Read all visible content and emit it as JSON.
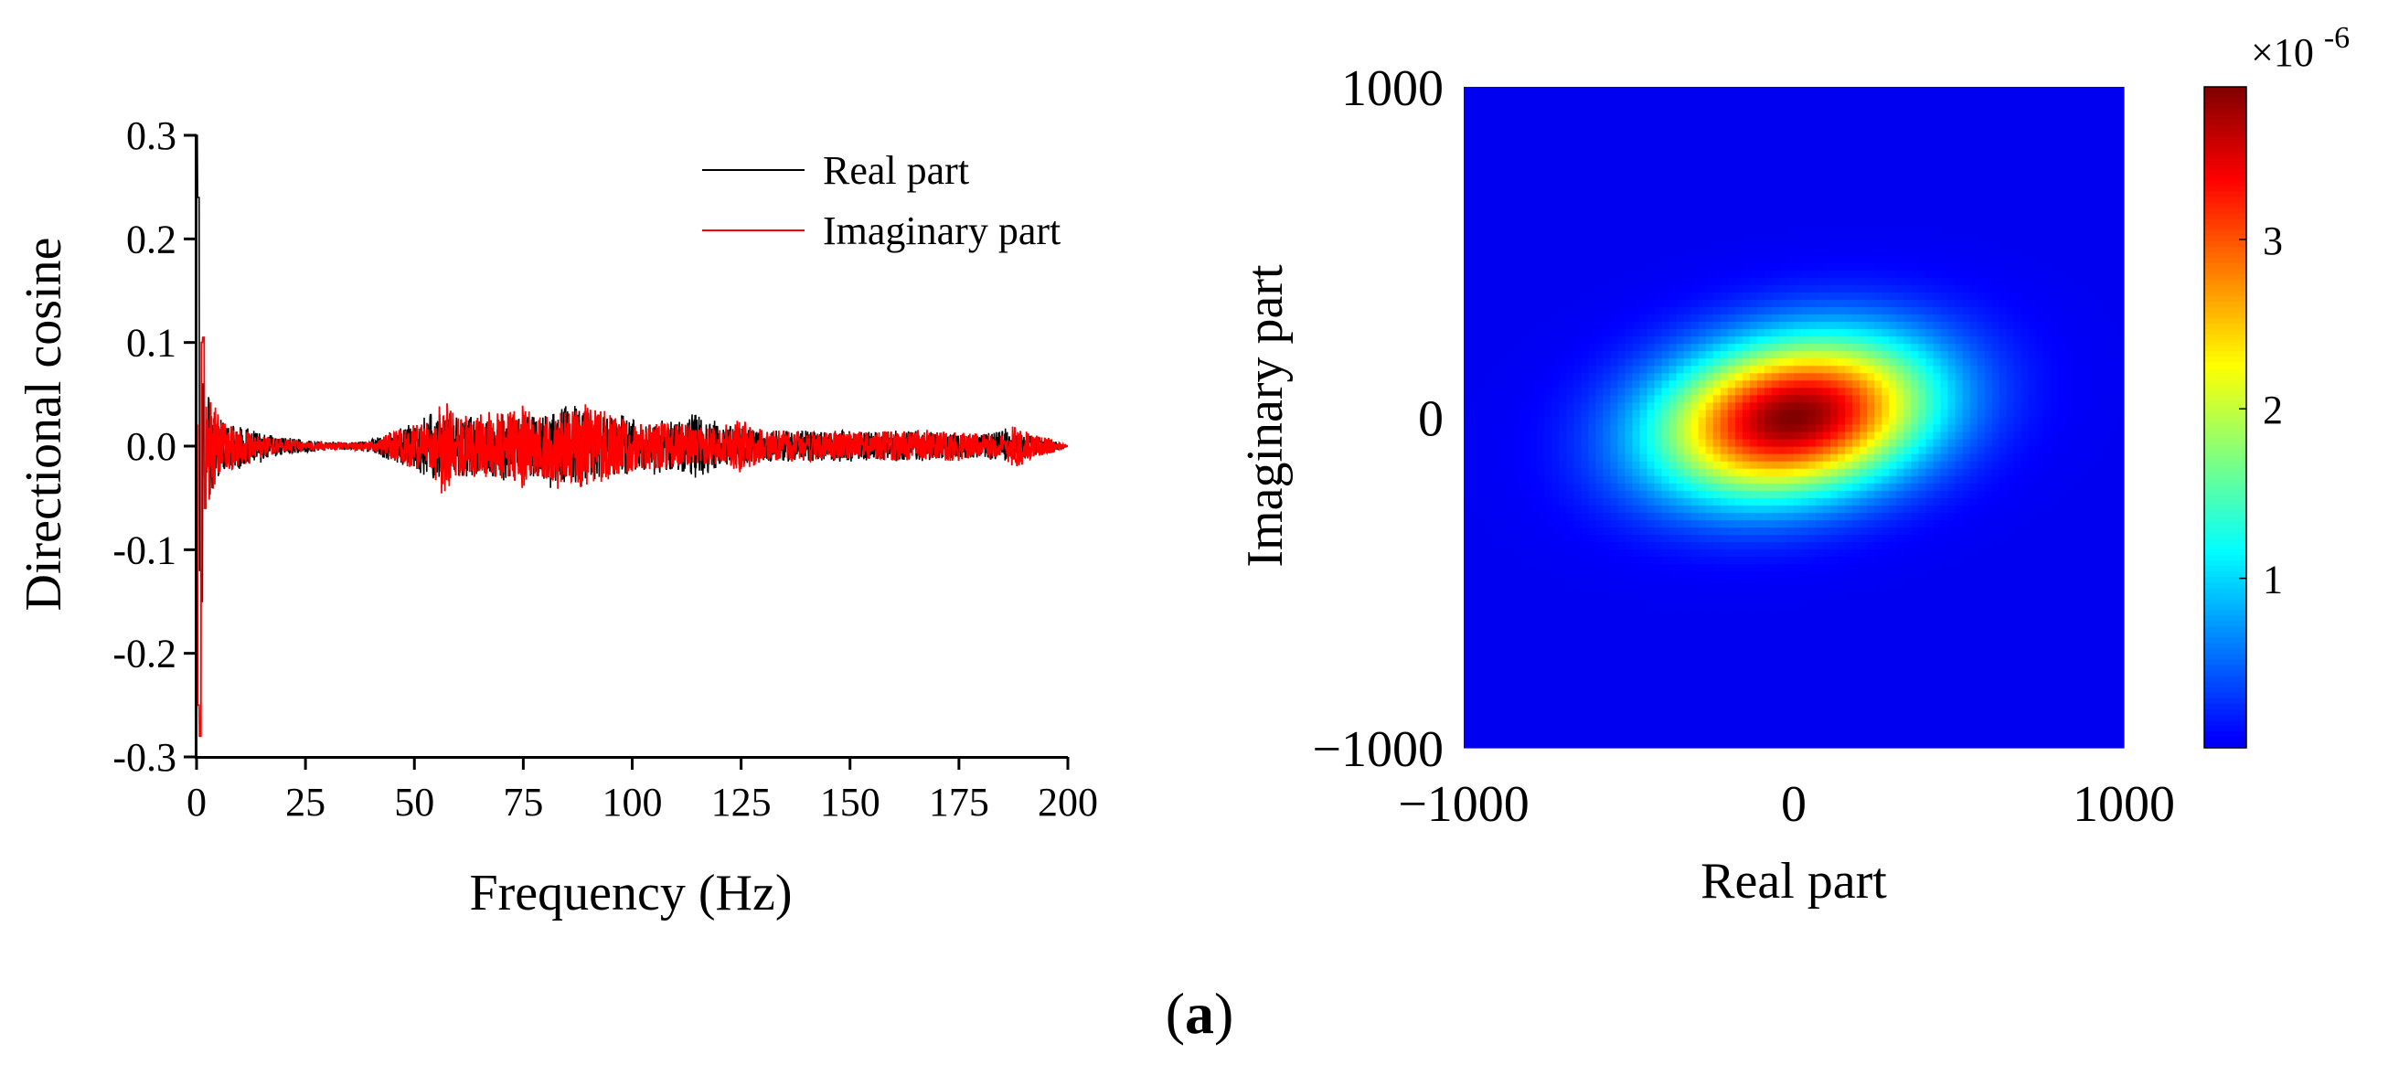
{
  "panel_label": "(a)",
  "panel_label_letter": "a",
  "panel_label_open": "(",
  "panel_label_close": ")",
  "colors": {
    "real_series": "#000000",
    "imag_series": "#ff0000",
    "colormap": "jet"
  },
  "chart_data": [
    {
      "type": "line",
      "title": "",
      "xlabel": "Frequency (Hz)",
      "ylabel": "Directional cosine",
      "xlim": [
        0,
        200
      ],
      "ylim": [
        -0.3,
        0.3
      ],
      "x_ticks": [
        0,
        25,
        50,
        75,
        100,
        125,
        150,
        175,
        200
      ],
      "x_tick_labels": [
        "0",
        "25",
        "50",
        "75",
        "100",
        "125",
        "150",
        "175",
        "200"
      ],
      "y_ticks": [
        0.3,
        0.2,
        0.1,
        0.0,
        -0.1,
        -0.2,
        -0.3
      ],
      "y_tick_labels": [
        "0.3",
        "0.2",
        "0.1",
        "0.0",
        "-0.1",
        "-0.2",
        "-0.3"
      ],
      "legend_position": "top-right",
      "series": [
        {
          "name": "Real part",
          "color": "#000000",
          "points": [
            [
              0.0,
              0.3
            ],
            [
              0.4,
              0.24
            ],
            [
              0.8,
              -0.12
            ],
            [
              1.2,
              -0.15
            ],
            [
              1.6,
              0.06
            ],
            [
              2.0,
              -0.03
            ],
            [
              3.0,
              0.08
            ],
            [
              4.0,
              -0.05
            ],
            [
              6.0,
              0.035
            ],
            [
              8.0,
              -0.025
            ],
            [
              10.0,
              0.03
            ],
            [
              13.0,
              -0.02
            ],
            [
              16.0,
              0.015
            ],
            [
              20.0,
              -0.012
            ],
            [
              25.0,
              0.008
            ],
            [
              30.0,
              -0.006
            ],
            [
              35.0,
              0.005
            ],
            [
              40.0,
              -0.008
            ],
            [
              45.0,
              0.02
            ],
            [
              50.0,
              -0.03
            ],
            [
              54.0,
              0.045
            ],
            [
              58.0,
              -0.04
            ],
            [
              62.0,
              0.04
            ],
            [
              66.0,
              -0.035
            ],
            [
              70.0,
              0.045
            ],
            [
              74.0,
              -0.04
            ],
            [
              78.0,
              0.04
            ],
            [
              82.0,
              -0.045
            ],
            [
              86.0,
              0.055
            ],
            [
              88.0,
              0.058
            ],
            [
              90.0,
              -0.05
            ],
            [
              94.0,
              0.04
            ],
            [
              98.0,
              -0.04
            ],
            [
              102.0,
              0.03
            ],
            [
              106.0,
              -0.035
            ],
            [
              110.0,
              0.03
            ],
            [
              115.0,
              -0.045
            ],
            [
              120.0,
              0.025
            ],
            [
              125.0,
              -0.025
            ],
            [
              130.0,
              0.02
            ],
            [
              135.0,
              -0.02
            ],
            [
              140.0,
              0.02
            ],
            [
              145.0,
              -0.02
            ],
            [
              150.0,
              0.02
            ],
            [
              155.0,
              -0.018
            ],
            [
              160.0,
              0.02
            ],
            [
              165.0,
              -0.02
            ],
            [
              170.0,
              0.018
            ],
            [
              175.0,
              -0.015
            ],
            [
              180.0,
              0.015
            ],
            [
              185.0,
              -0.02
            ],
            [
              190.0,
              0.015
            ],
            [
              195.0,
              -0.012
            ],
            [
              200.0,
              0.0
            ]
          ]
        },
        {
          "name": "Imaginary part",
          "color": "#ff0000",
          "points": [
            [
              0.0,
              0.02
            ],
            [
              0.4,
              -0.25
            ],
            [
              0.8,
              -0.28
            ],
            [
              1.2,
              0.1
            ],
            [
              1.6,
              0.105
            ],
            [
              2.0,
              -0.06
            ],
            [
              3.0,
              0.07
            ],
            [
              4.0,
              -0.06
            ],
            [
              6.0,
              0.03
            ],
            [
              8.0,
              -0.03
            ],
            [
              10.0,
              0.025
            ],
            [
              13.0,
              -0.015
            ],
            [
              16.0,
              0.012
            ],
            [
              20.0,
              -0.01
            ],
            [
              25.0,
              0.006
            ],
            [
              30.0,
              -0.005
            ],
            [
              35.0,
              0.005
            ],
            [
              40.0,
              -0.006
            ],
            [
              45.0,
              0.018
            ],
            [
              50.0,
              -0.03
            ],
            [
              54.0,
              0.03
            ],
            [
              56.0,
              -0.065
            ],
            [
              60.0,
              0.04
            ],
            [
              64.0,
              -0.04
            ],
            [
              68.0,
              0.045
            ],
            [
              72.0,
              -0.045
            ],
            [
              75.0,
              0.055
            ],
            [
              78.0,
              -0.04
            ],
            [
              82.0,
              0.045
            ],
            [
              86.0,
              -0.05
            ],
            [
              90.0,
              0.05
            ],
            [
              94.0,
              -0.045
            ],
            [
              98.0,
              0.035
            ],
            [
              102.0,
              -0.03
            ],
            [
              106.0,
              0.03
            ],
            [
              110.0,
              -0.03
            ],
            [
              115.0,
              0.025
            ],
            [
              120.0,
              -0.025
            ],
            [
              125.0,
              0.035
            ],
            [
              130.0,
              -0.02
            ],
            [
              135.0,
              0.02
            ],
            [
              140.0,
              -0.02
            ],
            [
              145.0,
              0.018
            ],
            [
              150.0,
              -0.018
            ],
            [
              155.0,
              0.018
            ],
            [
              160.0,
              -0.02
            ],
            [
              165.0,
              0.018
            ],
            [
              170.0,
              -0.018
            ],
            [
              175.0,
              0.02
            ],
            [
              180.0,
              -0.015
            ],
            [
              185.0,
              0.015
            ],
            [
              188.0,
              -0.03
            ],
            [
              192.0,
              0.015
            ],
            [
              196.0,
              -0.01
            ],
            [
              200.0,
              0.0
            ]
          ]
        }
      ]
    },
    {
      "type": "heatmap",
      "title": "",
      "xlabel": "Real part",
      "ylabel": "Imaginary part",
      "xlim": [
        -1000,
        1000
      ],
      "ylim": [
        -1000,
        1000
      ],
      "x_tick_labels": [
        "−1000",
        "0",
        "1000"
      ],
      "x_ticks": [
        -1000,
        0,
        1000
      ],
      "y_tick_labels": [
        "1000",
        "0",
        "−1000"
      ],
      "y_ticks": [
        1000,
        0,
        -1000
      ],
      "colorbar": {
        "range": [
          0.0,
          3.9
        ],
        "ticks": [
          1,
          2,
          3
        ],
        "tick_labels": [
          "1",
          "2",
          "3"
        ],
        "exponent_base": "×10",
        "exponent_power": "-6",
        "colormap": "jet"
      },
      "distribution": {
        "description": "tilted elliptical Gaussian peak",
        "center": [
          0,
          0
        ],
        "peak_value": 3.9,
        "sigma_major": 290,
        "sigma_minor": 160,
        "tilt_degrees": 10
      }
    }
  ]
}
